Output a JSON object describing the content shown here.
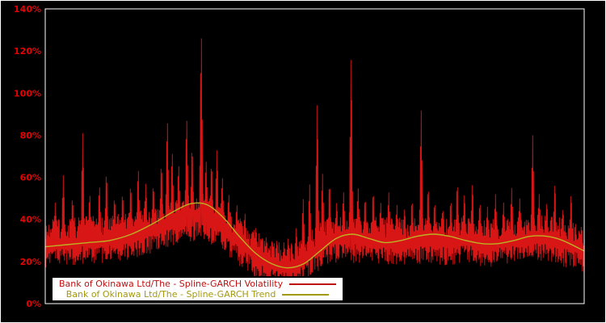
{
  "window": {
    "background": "#000000",
    "frame_color": "#ffffff"
  },
  "legend": {
    "background": "#ffffff",
    "items": [
      {
        "label": "Bank of Okinawa Ltd/The - Spline-GARCH Volatility",
        "color": "#c01010"
      },
      {
        "label": "Bank of Okinawa Ltd/The - Spline-GARCH Trend",
        "color": "#a39a12"
      }
    ]
  },
  "chart_data": {
    "type": "line",
    "title": "",
    "xlabel": "",
    "ylabel": "",
    "ylim": [
      0,
      140
    ],
    "grid": false,
    "legend_position": "bottom-left-inside",
    "ytick_percent": [
      0,
      20,
      40,
      60,
      80,
      100,
      120,
      140
    ],
    "ytick_labels": [
      "0%",
      "20%",
      "40%",
      "60%",
      "80%",
      "100%",
      "120%",
      "140%"
    ],
    "ytick_color": "#e60000",
    "series": [
      {
        "name": "Bank of Okinawa Ltd/The - Spline-GARCH Volatility",
        "color": "#d81616",
        "style": "noisy"
      },
      {
        "name": "Bank of Okinawa Ltd/The - Spline-GARCH Trend",
        "color": "#bdb024",
        "style": "smooth"
      }
    ],
    "trend_points": [
      [
        0,
        27
      ],
      [
        0.04,
        28
      ],
      [
        0.08,
        29
      ],
      [
        0.12,
        30
      ],
      [
        0.16,
        33
      ],
      [
        0.2,
        38
      ],
      [
        0.24,
        44
      ],
      [
        0.27,
        47.5
      ],
      [
        0.3,
        47
      ],
      [
        0.33,
        41
      ],
      [
        0.36,
        32
      ],
      [
        0.39,
        24
      ],
      [
        0.42,
        19
      ],
      [
        0.45,
        17
      ],
      [
        0.48,
        19
      ],
      [
        0.51,
        25
      ],
      [
        0.54,
        31
      ],
      [
        0.57,
        33
      ],
      [
        0.6,
        31
      ],
      [
        0.63,
        29
      ],
      [
        0.66,
        30
      ],
      [
        0.69,
        32
      ],
      [
        0.72,
        33
      ],
      [
        0.75,
        32
      ],
      [
        0.78,
        30
      ],
      [
        0.81,
        28.5
      ],
      [
        0.84,
        28.5
      ],
      [
        0.87,
        30
      ],
      [
        0.9,
        32
      ],
      [
        0.93,
        32
      ],
      [
        0.96,
        30
      ],
      [
        1,
        25
      ]
    ],
    "volatility": {
      "seed": 7,
      "noise_up": 10,
      "noise_down": 9,
      "floor": 13,
      "base_points": [
        [
          0,
          29
        ],
        [
          0.05,
          30
        ],
        [
          0.1,
          31
        ],
        [
          0.15,
          32
        ],
        [
          0.2,
          36
        ],
        [
          0.25,
          40
        ],
        [
          0.28,
          42
        ],
        [
          0.31,
          40
        ],
        [
          0.34,
          34
        ],
        [
          0.37,
          28
        ],
        [
          0.4,
          22
        ],
        [
          0.43,
          19
        ],
        [
          0.46,
          18
        ],
        [
          0.49,
          24
        ],
        [
          0.52,
          30
        ],
        [
          0.55,
          32
        ],
        [
          0.58,
          31
        ],
        [
          0.62,
          30
        ],
        [
          0.66,
          30
        ],
        [
          0.7,
          31
        ],
        [
          0.74,
          30
        ],
        [
          0.78,
          31
        ],
        [
          0.82,
          29
        ],
        [
          0.86,
          30
        ],
        [
          0.9,
          32
        ],
        [
          0.94,
          31
        ],
        [
          0.97,
          29
        ],
        [
          1,
          26
        ]
      ],
      "spikes": [
        [
          0.018,
          48
        ],
        [
          0.033,
          61
        ],
        [
          0.05,
          50
        ],
        [
          0.069,
          81
        ],
        [
          0.082,
          52
        ],
        [
          0.1,
          56
        ],
        [
          0.113,
          62
        ],
        [
          0.128,
          50
        ],
        [
          0.143,
          52
        ],
        [
          0.158,
          56
        ],
        [
          0.172,
          64
        ],
        [
          0.186,
          57
        ],
        [
          0.2,
          56
        ],
        [
          0.215,
          66
        ],
        [
          0.226,
          87
        ],
        [
          0.235,
          72
        ],
        [
          0.247,
          66
        ],
        [
          0.262,
          88
        ],
        [
          0.272,
          74
        ],
        [
          0.289,
          128
        ],
        [
          0.298,
          68
        ],
        [
          0.308,
          66
        ],
        [
          0.318,
          73
        ],
        [
          0.328,
          60
        ],
        [
          0.34,
          52
        ],
        [
          0.355,
          47
        ],
        [
          0.37,
          43
        ],
        [
          0.39,
          36
        ],
        [
          0.41,
          30
        ],
        [
          0.43,
          28
        ],
        [
          0.45,
          31
        ],
        [
          0.465,
          36
        ],
        [
          0.478,
          50
        ],
        [
          0.49,
          57
        ],
        [
          0.504,
          95
        ],
        [
          0.514,
          62
        ],
        [
          0.527,
          57
        ],
        [
          0.54,
          48
        ],
        [
          0.553,
          53
        ],
        [
          0.567,
          117
        ],
        [
          0.58,
          55
        ],
        [
          0.593,
          50
        ],
        [
          0.608,
          53
        ],
        [
          0.622,
          48
        ],
        [
          0.637,
          53
        ],
        [
          0.652,
          47
        ],
        [
          0.666,
          45
        ],
        [
          0.68,
          49
        ],
        [
          0.697,
          92
        ],
        [
          0.71,
          55
        ],
        [
          0.722,
          48
        ],
        [
          0.737,
          45
        ],
        [
          0.752,
          49
        ],
        [
          0.764,
          57
        ],
        [
          0.777,
          52
        ],
        [
          0.792,
          57
        ],
        [
          0.806,
          48
        ],
        [
          0.82,
          46
        ],
        [
          0.835,
          52
        ],
        [
          0.85,
          48
        ],
        [
          0.865,
          55
        ],
        [
          0.88,
          50
        ],
        [
          0.904,
          80
        ],
        [
          0.916,
          52
        ],
        [
          0.93,
          48
        ],
        [
          0.945,
          57
        ],
        [
          0.96,
          45
        ],
        [
          0.975,
          52
        ],
        [
          0.99,
          35
        ]
      ]
    }
  }
}
